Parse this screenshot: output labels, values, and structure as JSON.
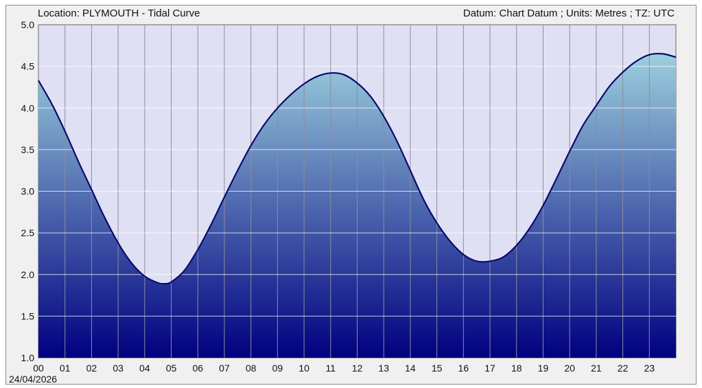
{
  "header": {
    "title": "Location: PLYMOUTH - Tidal Curve",
    "datum": "Datum: Chart Datum ; Units: Metres ; TZ: UTC"
  },
  "date_label": "24/04/2026",
  "colors": {
    "plot_background": "#e0e0f4",
    "fill_top": "#9ccfdd",
    "fill_bottom": "#000080",
    "line": "#0a0a6e",
    "grid": "#8c8c9c"
  },
  "chart_data": {
    "type": "area",
    "xlabel": "",
    "ylabel": "",
    "xlim": [
      0,
      24
    ],
    "ylim": [
      1.0,
      5.0
    ],
    "x_ticks": [
      "00",
      "01",
      "02",
      "03",
      "04",
      "05",
      "06",
      "07",
      "08",
      "09",
      "10",
      "11",
      "12",
      "13",
      "14",
      "15",
      "16",
      "17",
      "18",
      "19",
      "20",
      "21",
      "22",
      "23"
    ],
    "y_ticks": [
      "1.0",
      "1.5",
      "2.0",
      "2.5",
      "3.0",
      "3.5",
      "4.0",
      "4.5",
      "5.0"
    ],
    "grid": true,
    "series": [
      {
        "x": [
          0,
          0.5,
          1,
          1.5,
          2,
          2.5,
          3,
          3.5,
          4,
          4.5,
          4.75,
          5,
          5.5,
          6,
          6.5,
          7,
          7.5,
          8,
          8.5,
          9,
          9.5,
          10,
          10.5,
          11,
          11.5,
          12,
          12.5,
          13,
          13.5,
          14,
          14.5,
          15,
          15.5,
          16,
          16.5,
          17,
          17.5,
          18,
          18.5,
          19,
          19.5,
          20,
          20.5,
          21,
          21.5,
          22,
          22.5,
          23,
          23.5,
          24
        ],
        "values": [
          4.33,
          4.05,
          3.72,
          3.36,
          3.02,
          2.68,
          2.38,
          2.14,
          1.98,
          1.9,
          1.89,
          1.91,
          2.05,
          2.3,
          2.6,
          2.93,
          3.25,
          3.55,
          3.8,
          4.0,
          4.16,
          4.29,
          4.38,
          4.42,
          4.4,
          4.3,
          4.14,
          3.9,
          3.6,
          3.25,
          2.9,
          2.62,
          2.4,
          2.24,
          2.16,
          2.16,
          2.21,
          2.35,
          2.56,
          2.83,
          3.15,
          3.48,
          3.79,
          4.03,
          4.26,
          4.43,
          4.56,
          4.64,
          4.65,
          4.61
        ]
      }
    ]
  }
}
